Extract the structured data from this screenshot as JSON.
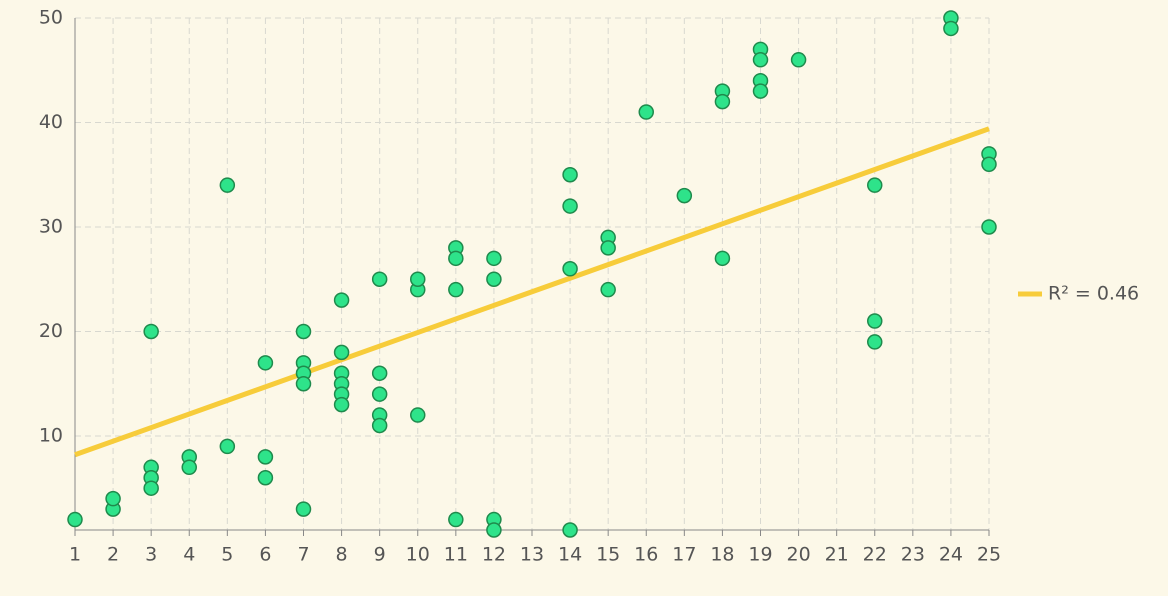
{
  "chart_data": {
    "type": "scatter",
    "xlim": [
      1,
      25
    ],
    "ylim": [
      1,
      50
    ],
    "xticks": [
      1,
      2,
      3,
      4,
      5,
      6,
      7,
      8,
      9,
      10,
      11,
      12,
      13,
      14,
      15,
      16,
      17,
      18,
      19,
      20,
      21,
      22,
      23,
      24,
      25
    ],
    "yticks": [
      10,
      20,
      30,
      40,
      50
    ],
    "grid": true,
    "series": [
      {
        "color": "#2ee38a",
        "stroke": "#1f8a4c",
        "x": [
          1,
          2,
          2,
          3,
          3,
          3,
          3,
          4,
          4,
          5,
          5,
          6,
          6,
          6,
          7,
          7,
          7,
          7,
          7,
          8,
          8,
          8,
          8,
          8,
          8,
          9,
          9,
          9,
          9,
          9,
          10,
          10,
          10,
          11,
          11,
          11,
          11,
          12,
          12,
          12,
          12,
          14,
          14,
          14,
          14,
          15,
          15,
          15,
          16,
          17,
          18,
          18,
          18,
          19,
          19,
          19,
          19,
          20,
          22,
          22,
          22,
          24,
          24,
          25,
          25,
          25
        ],
        "values": [
          2,
          3,
          4,
          20,
          7,
          6,
          5,
          8,
          7,
          34,
          9,
          17,
          8,
          6,
          20,
          17,
          16,
          15,
          3,
          23,
          18,
          16,
          15,
          14,
          13,
          25,
          16,
          14,
          12,
          11,
          24,
          25,
          12,
          28,
          27,
          24,
          2,
          27,
          25,
          2,
          1,
          35,
          32,
          26,
          1,
          29,
          28,
          24,
          41,
          33,
          43,
          42,
          27,
          47,
          46,
          44,
          43,
          46,
          34,
          21,
          19,
          50,
          49,
          37,
          36,
          30
        ]
      }
    ],
    "trendline": {
      "name": "R² = 0.46",
      "color": "#f7cc3a",
      "x": [
        1,
        25
      ],
      "values": [
        8.2,
        39.4
      ]
    },
    "legend": "right"
  }
}
